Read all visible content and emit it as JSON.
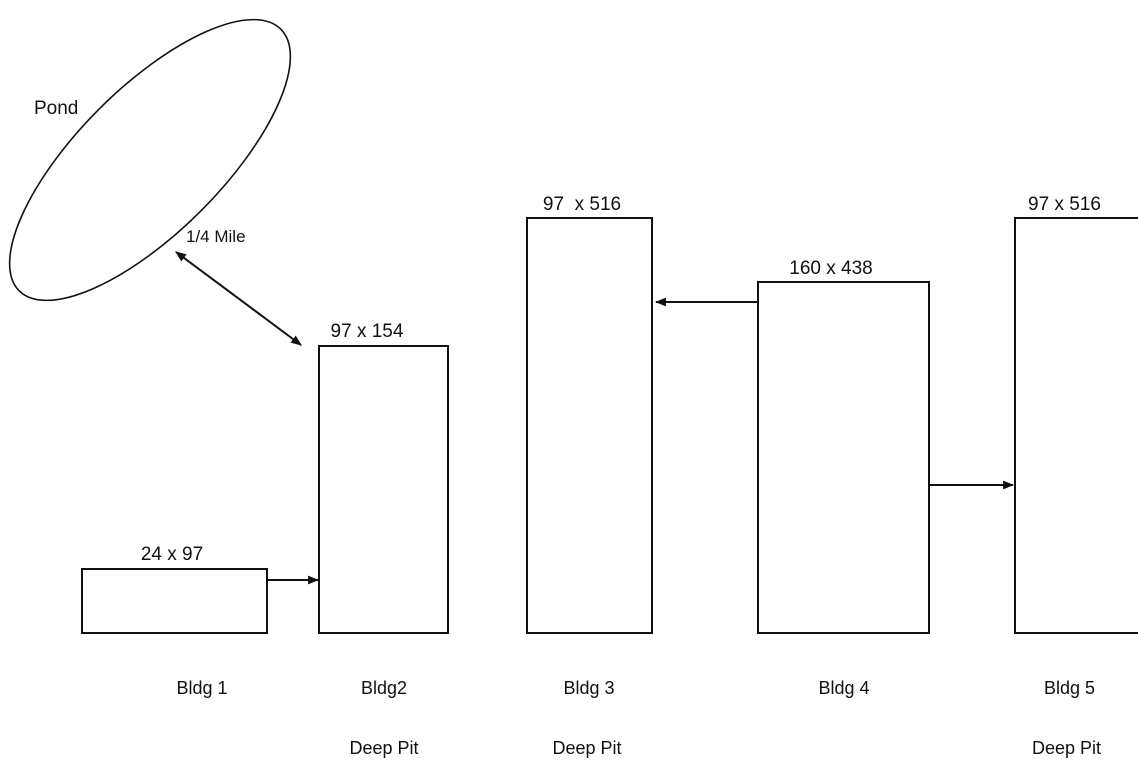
{
  "pond": {
    "label": "Pond"
  },
  "distance": {
    "label": "1/4 Mile"
  },
  "buildings": [
    {
      "name": "Bldg 1",
      "dimensions": "24 x 97",
      "note": ""
    },
    {
      "name": "Bldg2",
      "dimensions": "97 x 154",
      "note": "Deep Pit"
    },
    {
      "name": "Bldg 3",
      "dimensions": "97  x 516",
      "note": "Deep Pit"
    },
    {
      "name": "Bldg 4",
      "dimensions": "160 x 438",
      "note": ""
    },
    {
      "name": "Bldg 5",
      "dimensions": "97 x 516",
      "note": "Deep Pit"
    }
  ],
  "colors": {
    "line": "#111111",
    "background": "#ffffff"
  }
}
